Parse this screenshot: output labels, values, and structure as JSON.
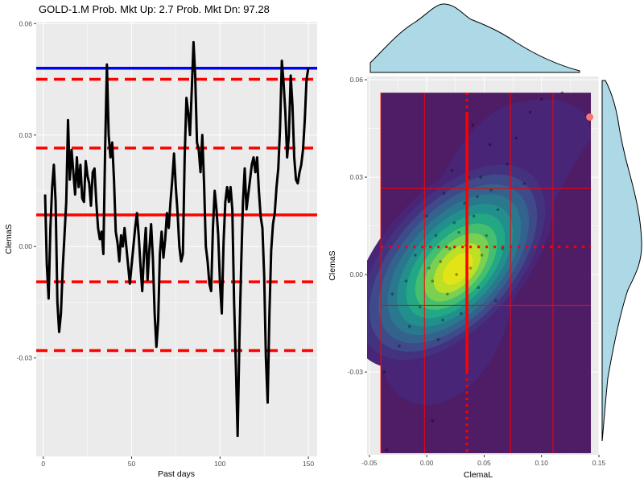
{
  "title": "GOLD-1.M   Prob. Mkt Up:  2.7  Prob. Mkt Dn:  97.28",
  "colors": {
    "panel_bg": "#ebebeb",
    "grid": "#ffffff",
    "series": "#000000",
    "upper_line": "#0000ff",
    "levels": "#ff0000",
    "marginal_fill": "#add8e6",
    "density_base": "#4f1c66",
    "highlight_point": "#f8766d"
  },
  "chart_data": [
    {
      "type": "line",
      "xlabel": "Past days",
      "ylabel": "ClemaS",
      "xlim": [
        -4,
        155
      ],
      "ylim": [
        -0.0565,
        0.0605
      ],
      "x_ticks": [
        0,
        50,
        100,
        150
      ],
      "y_ticks": [
        -0.03,
        0.0,
        0.03,
        0.06
      ],
      "x_tick_labels": [
        "0",
        "50",
        "100",
        "150"
      ],
      "y_tick_labels": [
        "-0.03",
        "0.00",
        "0.03",
        "0.06"
      ],
      "hlines": [
        {
          "y": 0.048,
          "style": "solid",
          "color": "#0000ff"
        },
        {
          "y": 0.045,
          "style": "dashed",
          "color": "#ff0000"
        },
        {
          "y": 0.0265,
          "style": "dashed",
          "color": "#ff0000"
        },
        {
          "y": 0.0085,
          "style": "solid",
          "color": "#ff0000"
        },
        {
          "y": -0.0095,
          "style": "dashed",
          "color": "#ff0000"
        },
        {
          "y": -0.028,
          "style": "dashed",
          "color": "#ff0000"
        }
      ],
      "series": [
        {
          "x": [
            1,
            2,
            3,
            4,
            5,
            6,
            7,
            8,
            9,
            10,
            11,
            12,
            13,
            14,
            15,
            16,
            17,
            18,
            19,
            20,
            21,
            22,
            23,
            24,
            25,
            26,
            27,
            28,
            29,
            30,
            31,
            32,
            33,
            34,
            35,
            36,
            37,
            38,
            39,
            40,
            41,
            42,
            43,
            44,
            45,
            46,
            47,
            48,
            49,
            50,
            51,
            52,
            53,
            54,
            55,
            56,
            57,
            58,
            59,
            60,
            61,
            62,
            63,
            64,
            65,
            66,
            67,
            68,
            69,
            70,
            71,
            72,
            73,
            74,
            75,
            76,
            77,
            78,
            79,
            80,
            81,
            82,
            83,
            84,
            85,
            86,
            87,
            88,
            89,
            90,
            91,
            92,
            93,
            94,
            95,
            96,
            97,
            98,
            99,
            100,
            101,
            102,
            103,
            104,
            105,
            106,
            107,
            108,
            109,
            110,
            111,
            112,
            113,
            114,
            115,
            116,
            117,
            118,
            119,
            120,
            121,
            122,
            123,
            124,
            125,
            126,
            127,
            128,
            129,
            130,
            131,
            132,
            133,
            134,
            135,
            136,
            137,
            138,
            139,
            140,
            141,
            142,
            143,
            144,
            145,
            146,
            147,
            148,
            149,
            150
          ],
          "y": [
            0.014,
            -0.005,
            -0.014,
            0.005,
            0.016,
            0.022,
            0.012,
            -0.015,
            -0.023,
            -0.018,
            -0.006,
            0.003,
            0.012,
            0.034,
            0.018,
            0.026,
            0.02,
            0.014,
            0.024,
            0.016,
            0.022,
            0.013,
            0.012,
            0.023,
            0.019,
            0.017,
            0.011,
            0.02,
            0.021,
            0.012,
            0.005,
            0.002,
            0.004,
            -0.002,
            0.026,
            0.049,
            0.03,
            0.024,
            0.028,
            0.018,
            0.004,
            0.001,
            -0.004,
            0.003,
            0.0,
            0.005,
            0.0,
            -0.005,
            -0.01,
            -0.005,
            0.0,
            0.005,
            0.009,
            0.003,
            -0.005,
            -0.012,
            -0.002,
            0.005,
            -0.009,
            -0.001,
            0.006,
            -0.003,
            -0.018,
            -0.027,
            -0.02,
            -0.002,
            0.004,
            -0.003,
            0.002,
            0.009,
            0.005,
            0.012,
            0.018,
            0.025,
            0.016,
            0.009,
            0.0,
            -0.004,
            -0.002,
            0.024,
            0.04,
            0.036,
            0.03,
            0.042,
            0.055,
            0.046,
            0.028,
            0.026,
            0.02,
            0.03,
            0.017,
            0.0,
            -0.004,
            -0.01,
            -0.012,
            0.005,
            0.015,
            0.01,
            0.003,
            -0.01,
            -0.018,
            0.001,
            0.012,
            0.016,
            0.012,
            0.016,
            0.01,
            -0.015,
            -0.032,
            -0.051,
            -0.025,
            -0.005,
            0.012,
            0.021,
            0.01,
            0.014,
            0.018,
            0.022,
            0.024,
            0.02,
            0.024,
            0.015,
            0.008,
            0.005,
            -0.008,
            -0.03,
            -0.042,
            -0.018,
            -0.001,
            0.006,
            0.009,
            0.016,
            0.021,
            0.032,
            0.05,
            0.044,
            0.036,
            0.024,
            0.03,
            0.046,
            0.038,
            0.024,
            0.018,
            0.017,
            0.02,
            0.022,
            0.026,
            0.034,
            0.045,
            0.048
          ]
        }
      ]
    },
    {
      "type": "heatmap",
      "xlabel": "ClemaL",
      "ylabel": "ClemaS",
      "xlim": [
        -0.052,
        0.15
      ],
      "ylim": [
        -0.0555,
        0.061
      ],
      "x_ticks": [
        -0.05,
        0.0,
        0.05,
        0.1,
        0.15
      ],
      "y_ticks": [
        -0.03,
        0.0,
        0.03,
        0.06
      ],
      "x_tick_labels": [
        "-0.05",
        "0.00",
        "0.05",
        "0.10",
        "0.15"
      ],
      "y_tick_labels": [
        "-0.03",
        "0.00",
        "0.03",
        "0.06"
      ],
      "density_color_steps": [
        "#482576",
        "#43337e",
        "#3e4a89",
        "#33638d",
        "#2a788e",
        "#21908d",
        "#22a884",
        "#44bf70",
        "#7ad151",
        "#bddf26",
        "#e2e418"
      ],
      "vlines_solid": [
        -0.04,
        -0.002,
        0.073,
        0.11
      ],
      "vline_highlight": {
        "x": 0.035,
        "style": "dotted-thick"
      },
      "hlines_solid": [
        0.0265,
        -0.0095
      ],
      "hline_dotted": 0.0085,
      "highlight_point": {
        "x": 0.142,
        "y": 0.0485
      },
      "points": [
        {
          "x": 0.012,
          "y": 0.004
        },
        {
          "x": 0.02,
          "y": 0.008
        },
        {
          "x": 0.005,
          "y": -0.002
        },
        {
          "x": 0.028,
          "y": 0.013
        },
        {
          "x": 0.041,
          "y": 0.018
        },
        {
          "x": 0.018,
          "y": -0.006
        },
        {
          "x": 0.033,
          "y": 0.022
        },
        {
          "x": 0.047,
          "y": 0.03
        },
        {
          "x": 0.056,
          "y": 0.026
        },
        {
          "x": 0.024,
          "y": 0.016
        },
        {
          "x": -0.006,
          "y": -0.01
        },
        {
          "x": -0.015,
          "y": -0.016
        },
        {
          "x": 0.038,
          "y": 0.002
        },
        {
          "x": 0.052,
          "y": 0.012
        },
        {
          "x": 0.062,
          "y": 0.02
        },
        {
          "x": 0.008,
          "y": 0.012
        },
        {
          "x": -0.024,
          "y": -0.022
        },
        {
          "x": 0.03,
          "y": -0.012
        },
        {
          "x": 0.045,
          "y": -0.004
        },
        {
          "x": 0.07,
          "y": 0.034
        },
        {
          "x": 0.078,
          "y": 0.042
        },
        {
          "x": 0.09,
          "y": 0.05
        },
        {
          "x": 0.015,
          "y": 0.025
        },
        {
          "x": 0.0,
          "y": 0.018
        },
        {
          "x": 0.06,
          "y": -0.008
        },
        {
          "x": 0.066,
          "y": 0.008
        },
        {
          "x": 0.036,
          "y": 0.03
        },
        {
          "x": 0.022,
          "y": 0.032
        },
        {
          "x": -0.01,
          "y": 0.006
        },
        {
          "x": -0.03,
          "y": -0.006
        },
        {
          "x": 0.01,
          "y": -0.02
        },
        {
          "x": 0.04,
          "y": 0.046
        },
        {
          "x": 0.055,
          "y": 0.04
        },
        {
          "x": 0.1,
          "y": 0.054
        },
        {
          "x": 0.118,
          "y": 0.056
        },
        {
          "x": 0.085,
          "y": 0.028
        },
        {
          "x": -0.037,
          "y": -0.03
        },
        {
          "x": -0.035,
          "y": -0.054
        },
        {
          "x": 0.005,
          "y": -0.045
        },
        {
          "x": 0.048,
          "y": 0.006
        },
        {
          "x": 0.026,
          "y": 0.0
        },
        {
          "x": 0.014,
          "y": -0.014
        },
        {
          "x": 0.034,
          "y": 0.009
        },
        {
          "x": 0.044,
          "y": 0.024
        },
        {
          "x": 0.002,
          "y": 0.002
        },
        {
          "x": -0.018,
          "y": -0.002
        }
      ]
    }
  ]
}
